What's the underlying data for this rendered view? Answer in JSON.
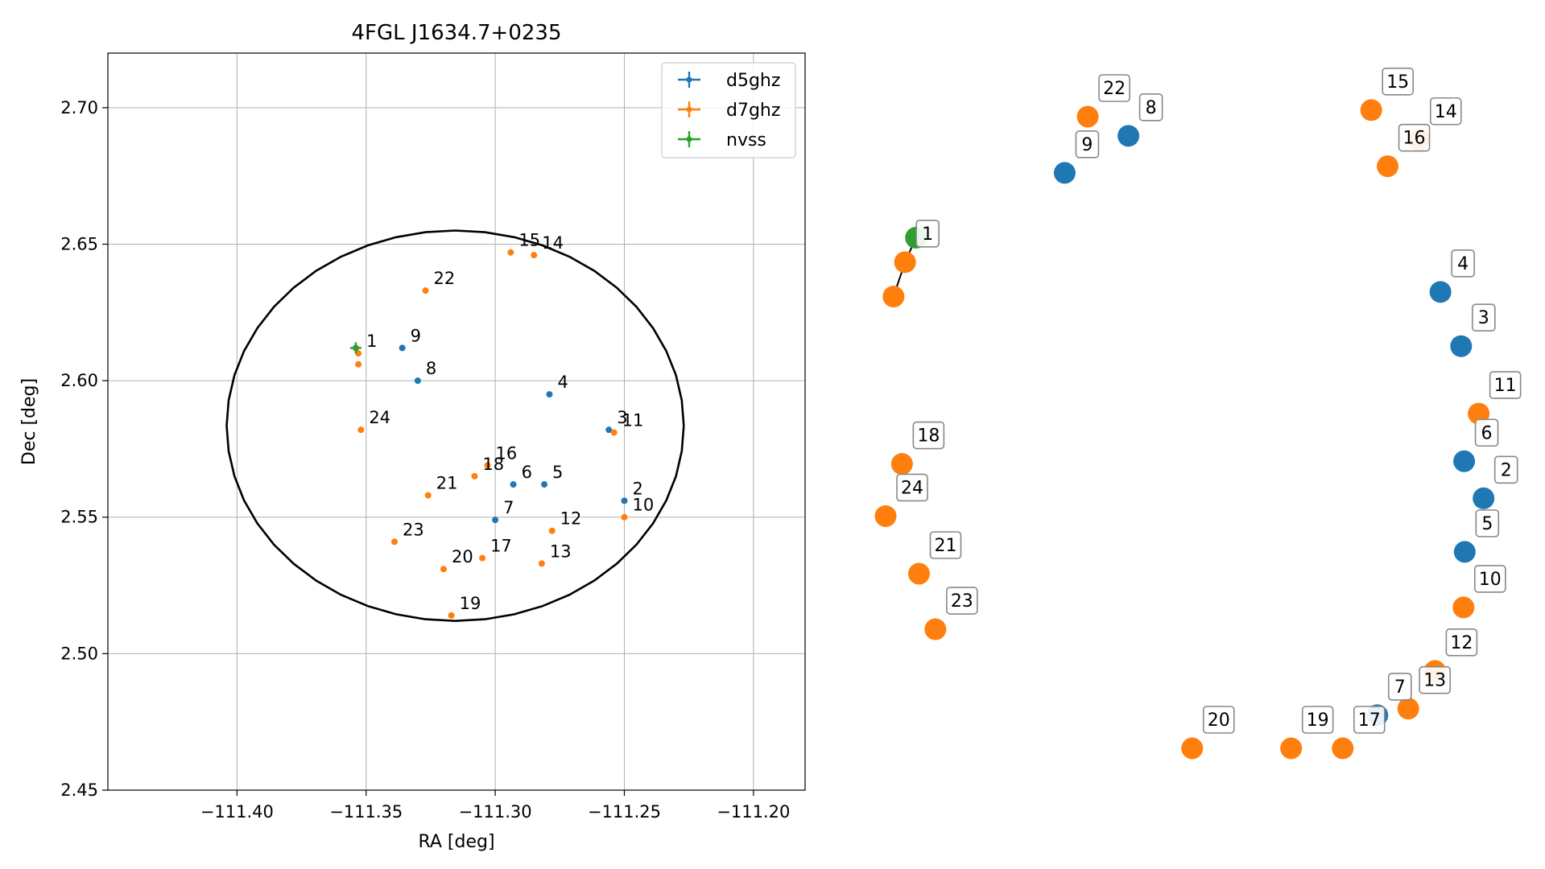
{
  "chart_data": [
    {
      "type": "scatter",
      "title": "4FGL J1634.7+0235",
      "xlabel": "RA [deg]",
      "ylabel": "Dec [deg]",
      "xlim": [
        -111.45,
        -111.18
      ],
      "ylim": [
        2.45,
        2.72
      ],
      "x_ticks": [
        -111.4,
        -111.35,
        -111.3,
        -111.25,
        -111.2
      ],
      "y_ticks": [
        2.45,
        2.5,
        2.55,
        2.6,
        2.65,
        2.7
      ],
      "x_tick_labels": [
        "−111.40",
        "−111.35",
        "−111.30",
        "−111.25",
        "−111.20"
      ],
      "y_tick_labels": [
        "2.45",
        "2.50",
        "2.55",
        "2.60",
        "2.65",
        "2.70"
      ],
      "grid": true,
      "legend_position": "top-right",
      "ellipse": {
        "center": [
          -111.3155,
          2.5835
        ],
        "semi_axis_ra": 0.0885,
        "semi_axis_dec": 0.0715
      },
      "series": [
        {
          "name": "d5ghz",
          "color": "#1f77b4",
          "points": [
            {
              "label": "2",
              "x": -111.25,
              "y": 2.556
            },
            {
              "label": "3",
              "x": -111.256,
              "y": 2.582
            },
            {
              "label": "4",
              "x": -111.279,
              "y": 2.595
            },
            {
              "label": "5",
              "x": -111.281,
              "y": 2.562
            },
            {
              "label": "6",
              "x": -111.293,
              "y": 2.562
            },
            {
              "label": "7",
              "x": -111.3,
              "y": 2.549
            },
            {
              "label": "8",
              "x": -111.33,
              "y": 2.6
            },
            {
              "label": "9",
              "x": -111.336,
              "y": 2.612
            }
          ]
        },
        {
          "name": "d7ghz",
          "color": "#ff7f0e",
          "points": [
            {
              "label": "1",
              "x": -111.353,
              "y": 2.61
            },
            {
              "label": "",
              "x": -111.353,
              "y": 2.606
            },
            {
              "label": "10",
              "x": -111.25,
              "y": 2.55
            },
            {
              "label": "11",
              "x": -111.254,
              "y": 2.581
            },
            {
              "label": "12",
              "x": -111.278,
              "y": 2.545
            },
            {
              "label": "13",
              "x": -111.282,
              "y": 2.533
            },
            {
              "label": "14",
              "x": -111.285,
              "y": 2.646
            },
            {
              "label": "15",
              "x": -111.294,
              "y": 2.647
            },
            {
              "label": "16",
              "x": -111.303,
              "y": 2.569
            },
            {
              "label": "17",
              "x": -111.305,
              "y": 2.535
            },
            {
              "label": "18",
              "x": -111.308,
              "y": 2.565
            },
            {
              "label": "19",
              "x": -111.317,
              "y": 2.514
            },
            {
              "label": "20",
              "x": -111.32,
              "y": 2.531
            },
            {
              "label": "21",
              "x": -111.326,
              "y": 2.558
            },
            {
              "label": "22",
              "x": -111.327,
              "y": 2.633
            },
            {
              "label": "23",
              "x": -111.339,
              "y": 2.541
            },
            {
              "label": "24",
              "x": -111.352,
              "y": 2.582
            }
          ]
        },
        {
          "name": "nvss",
          "color": "#2ca02c",
          "points": [
            {
              "label": "",
              "x": -111.354,
              "y": 2.612
            }
          ]
        }
      ]
    },
    {
      "type": "scatter",
      "subtype": "network-graph",
      "title": "",
      "nodes": [
        {
          "label": "",
          "group": "nvss",
          "color": "#2ca02c",
          "x": 0.05,
          "y": 0.772
        },
        {
          "label": "1",
          "group": "d7ghz",
          "color": "#ff7f0e",
          "x": 0.032,
          "y": 0.735
        },
        {
          "label": "",
          "group": "d7ghz",
          "color": "#ff7f0e",
          "x": 0.013,
          "y": 0.683
        },
        {
          "label": "2",
          "group": "d5ghz",
          "color": "#1f77b4",
          "x": 0.985,
          "y": 0.378
        },
        {
          "label": "3",
          "group": "d5ghz",
          "color": "#1f77b4",
          "x": 0.948,
          "y": 0.608
        },
        {
          "label": "4",
          "group": "d5ghz",
          "color": "#1f77b4",
          "x": 0.914,
          "y": 0.69
        },
        {
          "label": "5",
          "group": "d5ghz",
          "color": "#1f77b4",
          "x": 0.954,
          "y": 0.297
        },
        {
          "label": "6",
          "group": "d5ghz",
          "color": "#1f77b4",
          "x": 0.953,
          "y": 0.434
        },
        {
          "label": "7",
          "group": "d5ghz",
          "color": "#1f77b4",
          "x": 0.81,
          "y": 0.05
        },
        {
          "label": "8",
          "group": "d5ghz",
          "color": "#1f77b4",
          "x": 0.4,
          "y": 0.926
        },
        {
          "label": "9",
          "group": "d5ghz",
          "color": "#1f77b4",
          "x": 0.295,
          "y": 0.87
        },
        {
          "label": "10",
          "group": "d7ghz",
          "color": "#ff7f0e",
          "x": 0.952,
          "y": 0.213
        },
        {
          "label": "11",
          "group": "d7ghz",
          "color": "#ff7f0e",
          "x": 0.977,
          "y": 0.506
        },
        {
          "label": "12",
          "group": "d7ghz",
          "color": "#ff7f0e",
          "x": 0.905,
          "y": 0.117
        },
        {
          "label": "13",
          "group": "d7ghz",
          "color": "#ff7f0e",
          "x": 0.861,
          "y": 0.06
        },
        {
          "label": "14",
          "group": "d7ghz",
          "color": "#ff7f0e",
          "x": 0.879,
          "y": 0.92
        },
        {
          "label": "15",
          "group": "d7ghz",
          "color": "#ff7f0e",
          "x": 0.8,
          "y": 0.965
        },
        {
          "label": "16",
          "group": "d7ghz",
          "color": "#ff7f0e",
          "x": 0.827,
          "y": 0.88
        },
        {
          "label": "17",
          "group": "d7ghz",
          "color": "#ff7f0e",
          "x": 0.753,
          "y": 0.0
        },
        {
          "label": "18",
          "group": "d7ghz",
          "color": "#ff7f0e",
          "x": 0.027,
          "y": 0.43
        },
        {
          "label": "19",
          "group": "d7ghz",
          "color": "#ff7f0e",
          "x": 0.668,
          "y": 0.0
        },
        {
          "label": "20",
          "group": "d7ghz",
          "color": "#ff7f0e",
          "x": 0.505,
          "y": 0.0
        },
        {
          "label": "21",
          "group": "d7ghz",
          "color": "#ff7f0e",
          "x": 0.055,
          "y": 0.264
        },
        {
          "label": "22",
          "group": "d7ghz",
          "color": "#ff7f0e",
          "x": 0.333,
          "y": 0.955
        },
        {
          "label": "23",
          "group": "d7ghz",
          "color": "#ff7f0e",
          "x": 0.082,
          "y": 0.18
        },
        {
          "label": "24",
          "group": "d7ghz",
          "color": "#ff7f0e",
          "x": 0.0,
          "y": 0.351
        }
      ],
      "edges": [
        [
          0,
          1
        ],
        [
          1,
          2
        ]
      ]
    }
  ]
}
